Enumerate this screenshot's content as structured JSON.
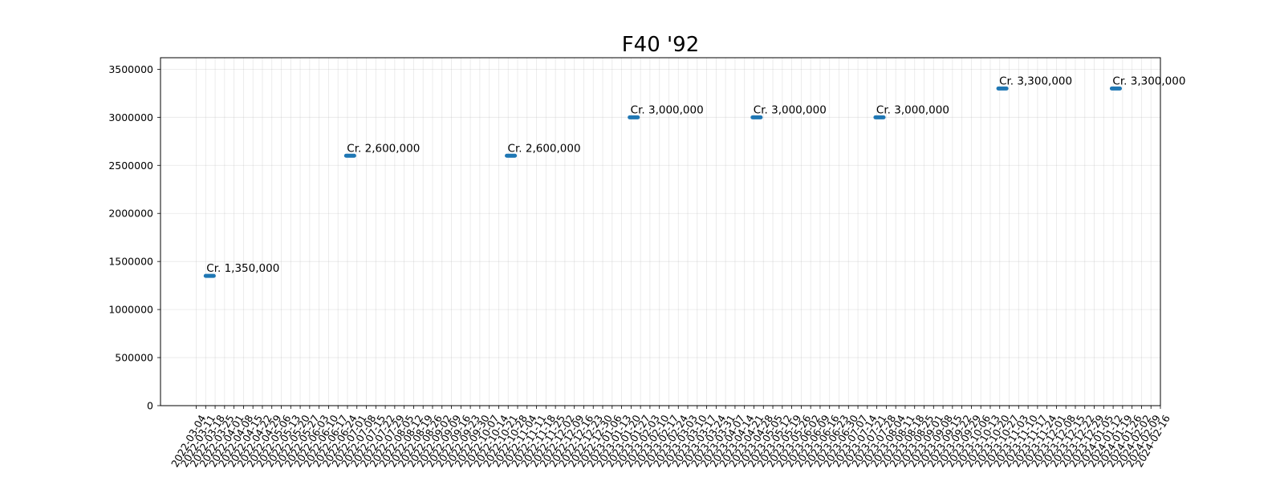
{
  "chart_data": {
    "type": "scatter",
    "title": "F40 '92",
    "xlabel": "",
    "ylabel": "",
    "x_ticks": [
      "2022-03-04",
      "2022-03-11",
      "2022-03-18",
      "2022-03-25",
      "2022-04-01",
      "2022-04-08",
      "2022-04-15",
      "2022-04-22",
      "2022-04-29",
      "2022-05-06",
      "2022-05-13",
      "2022-05-20",
      "2022-05-27",
      "2022-06-03",
      "2022-06-10",
      "2022-06-17",
      "2022-06-24",
      "2022-07-01",
      "2022-07-08",
      "2022-07-15",
      "2022-07-22",
      "2022-07-29",
      "2022-08-05",
      "2022-08-12",
      "2022-08-19",
      "2022-08-26",
      "2022-09-02",
      "2022-09-09",
      "2022-09-16",
      "2022-09-23",
      "2022-09-30",
      "2022-10-07",
      "2022-10-14",
      "2022-10-21",
      "2022-10-28",
      "2022-11-04",
      "2022-11-11",
      "2022-11-18",
      "2022-11-25",
      "2022-12-02",
      "2022-12-09",
      "2022-12-16",
      "2022-12-23",
      "2022-12-30",
      "2023-01-06",
      "2023-01-13",
      "2023-01-20",
      "2023-01-27",
      "2023-02-03",
      "2023-02-10",
      "2023-02-17",
      "2023-02-24",
      "2023-03-03",
      "2023-03-10",
      "2023-03-17",
      "2023-03-24",
      "2023-03-31",
      "2023-04-07",
      "2023-04-14",
      "2023-04-21",
      "2023-04-28",
      "2023-05-05",
      "2023-05-12",
      "2023-05-19",
      "2023-05-26",
      "2023-06-02",
      "2023-06-09",
      "2023-06-16",
      "2023-06-23",
      "2023-06-30",
      "2023-07-07",
      "2023-07-14",
      "2023-07-21",
      "2023-07-28",
      "2023-08-04",
      "2023-08-11",
      "2023-08-18",
      "2023-08-25",
      "2023-09-01",
      "2023-09-08",
      "2023-09-15",
      "2023-09-22",
      "2023-09-29",
      "2023-10-06",
      "2023-10-13",
      "2023-10-20",
      "2023-10-27",
      "2023-11-03",
      "2023-11-10",
      "2023-11-17",
      "2023-11-24",
      "2023-12-01",
      "2023-12-08",
      "2023-12-15",
      "2023-12-22",
      "2023-12-29",
      "2024-01-05",
      "2024-01-12",
      "2024-01-19",
      "2024-01-26",
      "2024-02-02",
      "2024-02-09",
      "2024-02-16"
    ],
    "y_ticks": [
      0,
      500000,
      1000000,
      1500000,
      2000000,
      2500000,
      3000000,
      3500000
    ],
    "ylim": [
      0,
      3620000
    ],
    "grid": true,
    "color": "#1f77b4",
    "points": [
      {
        "start": "2022-03-11",
        "end": "2022-03-17",
        "value": 1350000,
        "label": "Cr. 1,350,000"
      },
      {
        "start": "2022-06-23",
        "end": "2022-06-29",
        "value": 2600000,
        "label": "Cr. 2,600,000"
      },
      {
        "start": "2022-10-20",
        "end": "2022-10-26",
        "value": 2600000,
        "label": "Cr. 2,600,000"
      },
      {
        "start": "2023-01-19",
        "end": "2023-01-25",
        "value": 3000000,
        "label": "Cr. 3,000,000"
      },
      {
        "start": "2023-04-20",
        "end": "2023-04-26",
        "value": 3000000,
        "label": "Cr. 3,000,000"
      },
      {
        "start": "2023-07-20",
        "end": "2023-07-26",
        "value": 3000000,
        "label": "Cr. 3,000,000"
      },
      {
        "start": "2023-10-19",
        "end": "2023-10-25",
        "value": 3300000,
        "label": "Cr. 3,300,000"
      },
      {
        "start": "2024-01-11",
        "end": "2024-01-17",
        "value": 3300000,
        "label": "Cr. 3,300,000"
      }
    ]
  }
}
